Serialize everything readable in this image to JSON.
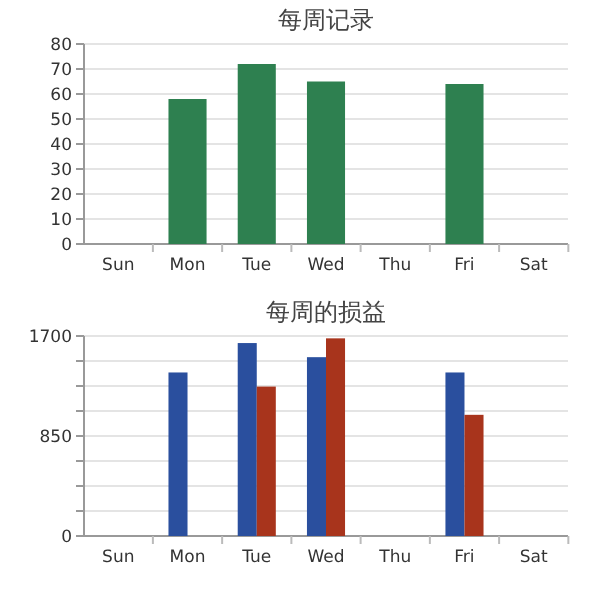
{
  "chart_data": [
    {
      "type": "bar",
      "title": "每周记录",
      "categories": [
        "Sun",
        "Mon",
        "Tue",
        "Wed",
        "Thu",
        "Fri",
        "Sat"
      ],
      "values": [
        null,
        58,
        72,
        65,
        null,
        64,
        null
      ],
      "color": "#2e8050",
      "ylim": [
        0,
        80
      ],
      "yticks": [
        0,
        10,
        20,
        30,
        40,
        50,
        60,
        70,
        80
      ],
      "grid": "y"
    },
    {
      "type": "bar",
      "title": "每周的损益",
      "categories": [
        "Sun",
        "Mon",
        "Tue",
        "Wed",
        "Thu",
        "Fri",
        "Sat"
      ],
      "series": [
        {
          "color": "#2a4f9e",
          "values": [
            null,
            1390,
            1640,
            1520,
            null,
            1390,
            null
          ]
        },
        {
          "color": "#a8341c",
          "values": [
            null,
            null,
            1270,
            1680,
            null,
            1030,
            null
          ]
        }
      ],
      "ylim": [
        0,
        1700
      ],
      "yticks": [
        0,
        {
          "value": 212.5,
          "label": null
        },
        {
          "value": 425,
          "label": null
        },
        {
          "value": 637.5,
          "label": null
        },
        850,
        {
          "value": 1062.5,
          "label": null
        },
        {
          "value": 1275,
          "label": null
        },
        {
          "value": 1487.5,
          "label": null
        },
        1700
      ],
      "grid": "y"
    }
  ]
}
